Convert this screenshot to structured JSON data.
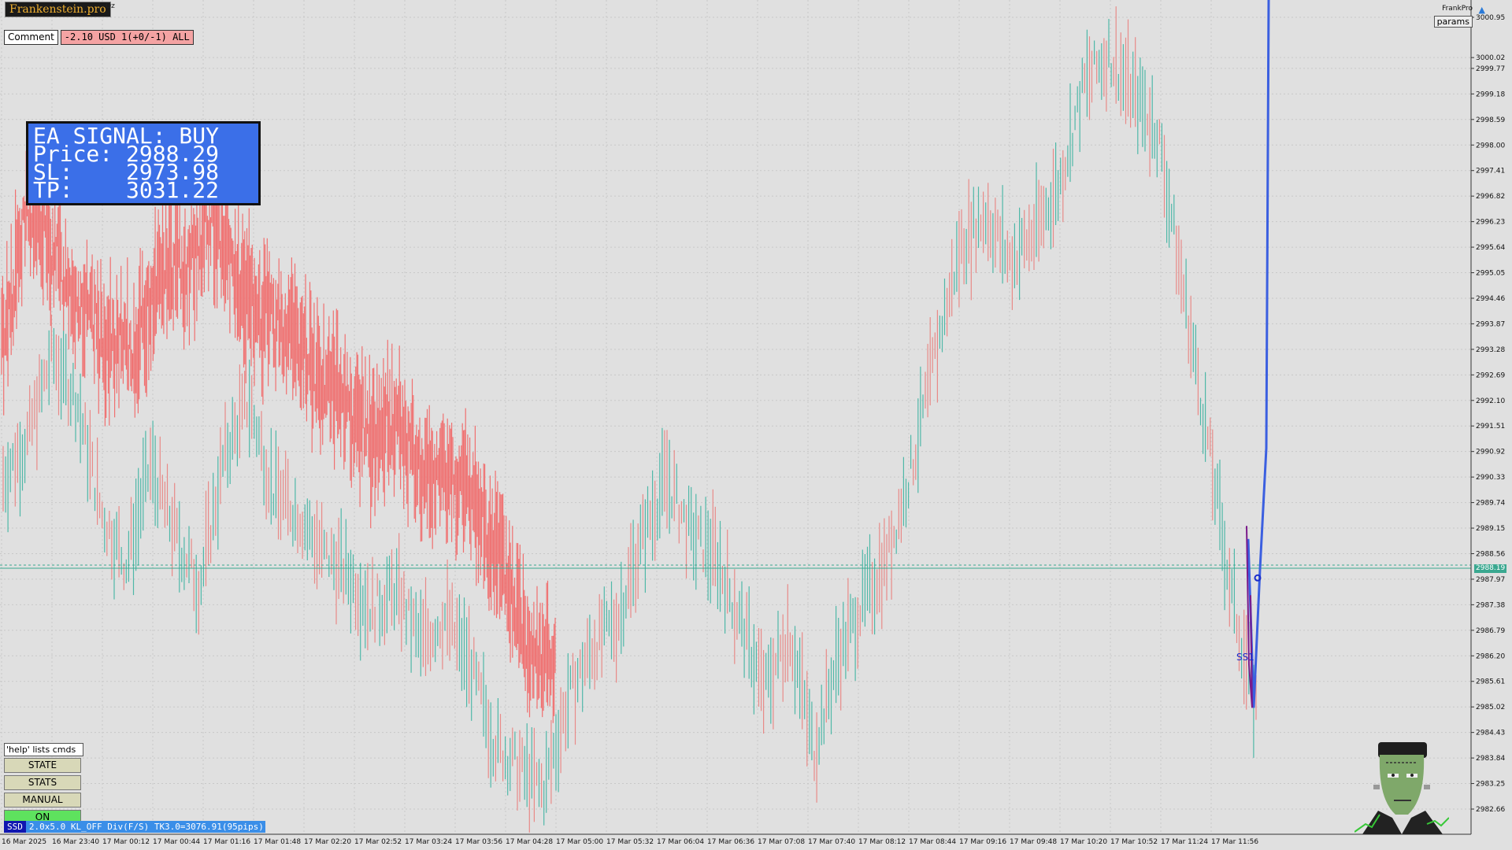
{
  "header": {
    "brand": "Frankenstein.pro",
    "symbol_tag": "Oz",
    "comment_button": "Comment",
    "pnl_status": "-2.10 USD 1(+0/-1) ALL",
    "frank_label": "FrankPro",
    "params_button": "params"
  },
  "signal_box": {
    "line1": "EA SIGNAL: BUY",
    "line2": "Price: 2988.29",
    "line3": "SL:    2973.98",
    "line4": "TP:    3031.22"
  },
  "side_buttons": {
    "help": "'help' lists cmds",
    "state": "STATE",
    "stats": "STATS",
    "manual": "MANUAL",
    "on": "ON"
  },
  "status_bar": {
    "tag": "SSD",
    "text": "2.0x5.0 KL_OFF Div(F/S) TK3.0=3076.91(95pips)"
  },
  "price_marker": "2988.19",
  "annotation": "SS1",
  "chart_data": {
    "type": "line",
    "price_axis": [
      "3000.95",
      "3000.02",
      "2999.77",
      "2999.18",
      "2998.59",
      "2998.00",
      "2997.41",
      "2996.82",
      "2996.23",
      "2995.64",
      "2995.05",
      "2994.46",
      "2993.87",
      "2993.28",
      "2992.69",
      "2992.10",
      "2991.51",
      "2990.92",
      "2990.33",
      "2989.74",
      "2989.15",
      "2988.56",
      "2987.97",
      "2987.38",
      "2986.79",
      "2986.20",
      "2985.61",
      "2985.02",
      "2984.43",
      "2983.84",
      "2983.25",
      "2982.66"
    ],
    "time_axis": [
      "16 Mar 2025",
      "16 Mar 23:40",
      "17 Mar 00:12",
      "17 Mar 00:44",
      "17 Mar 01:16",
      "17 Mar 01:48",
      "17 Mar 02:20",
      "17 Mar 02:52",
      "17 Mar 03:24",
      "17 Mar 03:56",
      "17 Mar 04:28",
      "17 Mar 05:00",
      "17 Mar 05:32",
      "17 Mar 06:04",
      "17 Mar 06:36",
      "17 Mar 07:08",
      "17 Mar 07:40",
      "17 Mar 08:12",
      "17 Mar 08:44",
      "17 Mar 09:16",
      "17 Mar 09:48",
      "17 Mar 10:20",
      "17 Mar 10:52",
      "17 Mar 11:24",
      "17 Mar 11:56"
    ],
    "bid_series": [
      2990.3,
      2991.2,
      2993.2,
      2992.1,
      2989.5,
      2988.3,
      2990.6,
      2989.0,
      2987.8,
      2990.8,
      2992.1,
      2990.0,
      2989.5,
      2988.6,
      2988.1,
      2987.3,
      2987.7,
      2986.5,
      2987.1,
      2986.0,
      2984.2,
      2983.6,
      2983.1,
      2985.2,
      2986.4,
      2987.0,
      2988.9,
      2990.3,
      2989.0,
      2988.5,
      2987.0,
      2985.4,
      2986.8,
      2984.0,
      2986.2,
      2987.4,
      2988.5,
      2990.6,
      2993.3,
      2995.7,
      2996.4,
      2995.3,
      2996.0,
      2997.1,
      2999.4,
      3000.1,
      2999.2,
      2998.3,
      2994.8,
      2991.3,
      2987.6,
      2985.0
    ],
    "ask_series": [
      2993.4,
      2996.5,
      2995.5,
      2994.3,
      2993.4,
      2993.2,
      2995.1,
      2995.2,
      2996.2,
      2994.7,
      2994.0,
      2993.7,
      2992.7,
      2992.2,
      2991.2,
      2991.7,
      2990.2,
      2990.4,
      2989.7,
      2988.2,
      2986.5,
      2986.0
    ],
    "ssd_line": [
      2985.0,
      2988.0,
      2991.0,
      3001.0
    ],
    "price_line": 2988.19
  }
}
